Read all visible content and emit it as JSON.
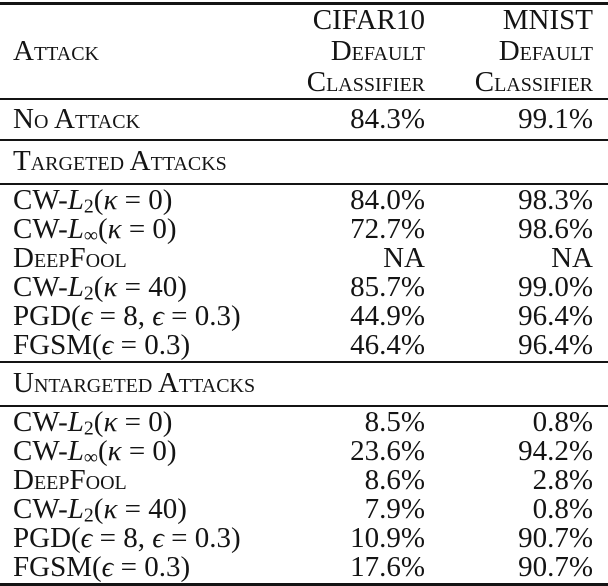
{
  "page": {
    "background": "#ffffff",
    "text_color": "#141414",
    "rule_color": "#141414"
  },
  "table": {
    "header": {
      "col1": "Attack",
      "col2_lines": [
        "CIFAR10",
        "Default",
        "Classifier"
      ],
      "col3_lines": [
        "MNIST",
        "Default",
        "Classifier"
      ]
    },
    "baseline_row": {
      "label": "No Attack",
      "cifar10": "84.3%",
      "mnist": "99.1%"
    },
    "sections": [
      {
        "title": "Targeted Attacks",
        "rows": [
          {
            "label_plain": "CW-L2(k = 0)",
            "label_segments": [
              {
                "t": "CW-"
              },
              {
                "t": "L",
                "s": "it"
              },
              {
                "t": "2",
                "s": "sub"
              },
              {
                "t": "("
              },
              {
                "t": "κ",
                "s": "it"
              },
              {
                "t": " = 0)"
              }
            ],
            "cifar10": "84.0%",
            "mnist": "98.3%"
          },
          {
            "label_plain": "CW-Linf(k = 0)",
            "label_segments": [
              {
                "t": "CW-"
              },
              {
                "t": "L",
                "s": "it"
              },
              {
                "t": "∞",
                "s": "sub"
              },
              {
                "t": "("
              },
              {
                "t": "κ",
                "s": "it"
              },
              {
                "t": " = 0)"
              }
            ],
            "cifar10": "72.7%",
            "mnist": "98.6%"
          },
          {
            "label_plain": "DeepFool",
            "label_segments": [
              {
                "t": "DeepFool",
                "s": "sc"
              }
            ],
            "cifar10": "NA",
            "mnist": "NA"
          },
          {
            "label_plain": "CW-L2(k = 40)",
            "label_segments": [
              {
                "t": "CW-"
              },
              {
                "t": "L",
                "s": "it"
              },
              {
                "t": "2",
                "s": "sub"
              },
              {
                "t": "("
              },
              {
                "t": "κ",
                "s": "it"
              },
              {
                "t": " = 40)"
              }
            ],
            "cifar10": "85.7%",
            "mnist": "99.0%"
          },
          {
            "label_plain": "PGD(e = 8, e = 0.3)",
            "label_segments": [
              {
                "t": "PGD("
              },
              {
                "t": "ϵ",
                "s": "it"
              },
              {
                "t": " = 8, "
              },
              {
                "t": "ϵ",
                "s": "it"
              },
              {
                "t": " = 0.3)"
              }
            ],
            "cifar10": "44.9%",
            "mnist": "96.4%"
          },
          {
            "label_plain": "FGSM(e = 0.3)",
            "label_segments": [
              {
                "t": "FGSM("
              },
              {
                "t": "ϵ",
                "s": "it"
              },
              {
                "t": " = 0.3)"
              }
            ],
            "cifar10": "46.4%",
            "mnist": "96.4%"
          }
        ]
      },
      {
        "title": "Untargeted Attacks",
        "rows": [
          {
            "label_plain": "CW-L2(k = 0)",
            "label_segments": [
              {
                "t": "CW-"
              },
              {
                "t": "L",
                "s": "it"
              },
              {
                "t": "2",
                "s": "sub"
              },
              {
                "t": "("
              },
              {
                "t": "κ",
                "s": "it"
              },
              {
                "t": " = 0)"
              }
            ],
            "cifar10": "8.5%",
            "mnist": "0.8%"
          },
          {
            "label_plain": "CW-Linf(k = 0)",
            "label_segments": [
              {
                "t": "CW-"
              },
              {
                "t": "L",
                "s": "it"
              },
              {
                "t": "∞",
                "s": "sub"
              },
              {
                "t": "("
              },
              {
                "t": "κ",
                "s": "it"
              },
              {
                "t": " = 0)"
              }
            ],
            "cifar10": "23.6%",
            "mnist": "94.2%"
          },
          {
            "label_plain": "DeepFool",
            "label_segments": [
              {
                "t": "DeepFool",
                "s": "sc"
              }
            ],
            "cifar10": "8.6%",
            "mnist": "2.8%"
          },
          {
            "label_plain": "CW-L2(k = 40)",
            "label_segments": [
              {
                "t": "CW-"
              },
              {
                "t": "L",
                "s": "it"
              },
              {
                "t": "2",
                "s": "sub"
              },
              {
                "t": "("
              },
              {
                "t": "κ",
                "s": "it"
              },
              {
                "t": " = 40)"
              }
            ],
            "cifar10": "7.9%",
            "mnist": "0.8%"
          },
          {
            "label_plain": "PGD(e = 8, e = 0.3)",
            "label_segments": [
              {
                "t": "PGD("
              },
              {
                "t": "ϵ",
                "s": "it"
              },
              {
                "t": " = 8, "
              },
              {
                "t": "ϵ",
                "s": "it"
              },
              {
                "t": " = 0.3)"
              }
            ],
            "cifar10": "10.9%",
            "mnist": "90.7%"
          },
          {
            "label_plain": "FGSM(e = 0.3)",
            "label_segments": [
              {
                "t": "FGSM("
              },
              {
                "t": "ϵ",
                "s": "it"
              },
              {
                "t": " = 0.3)"
              }
            ],
            "cifar10": "17.6%",
            "mnist": "90.7%"
          }
        ]
      }
    ]
  }
}
